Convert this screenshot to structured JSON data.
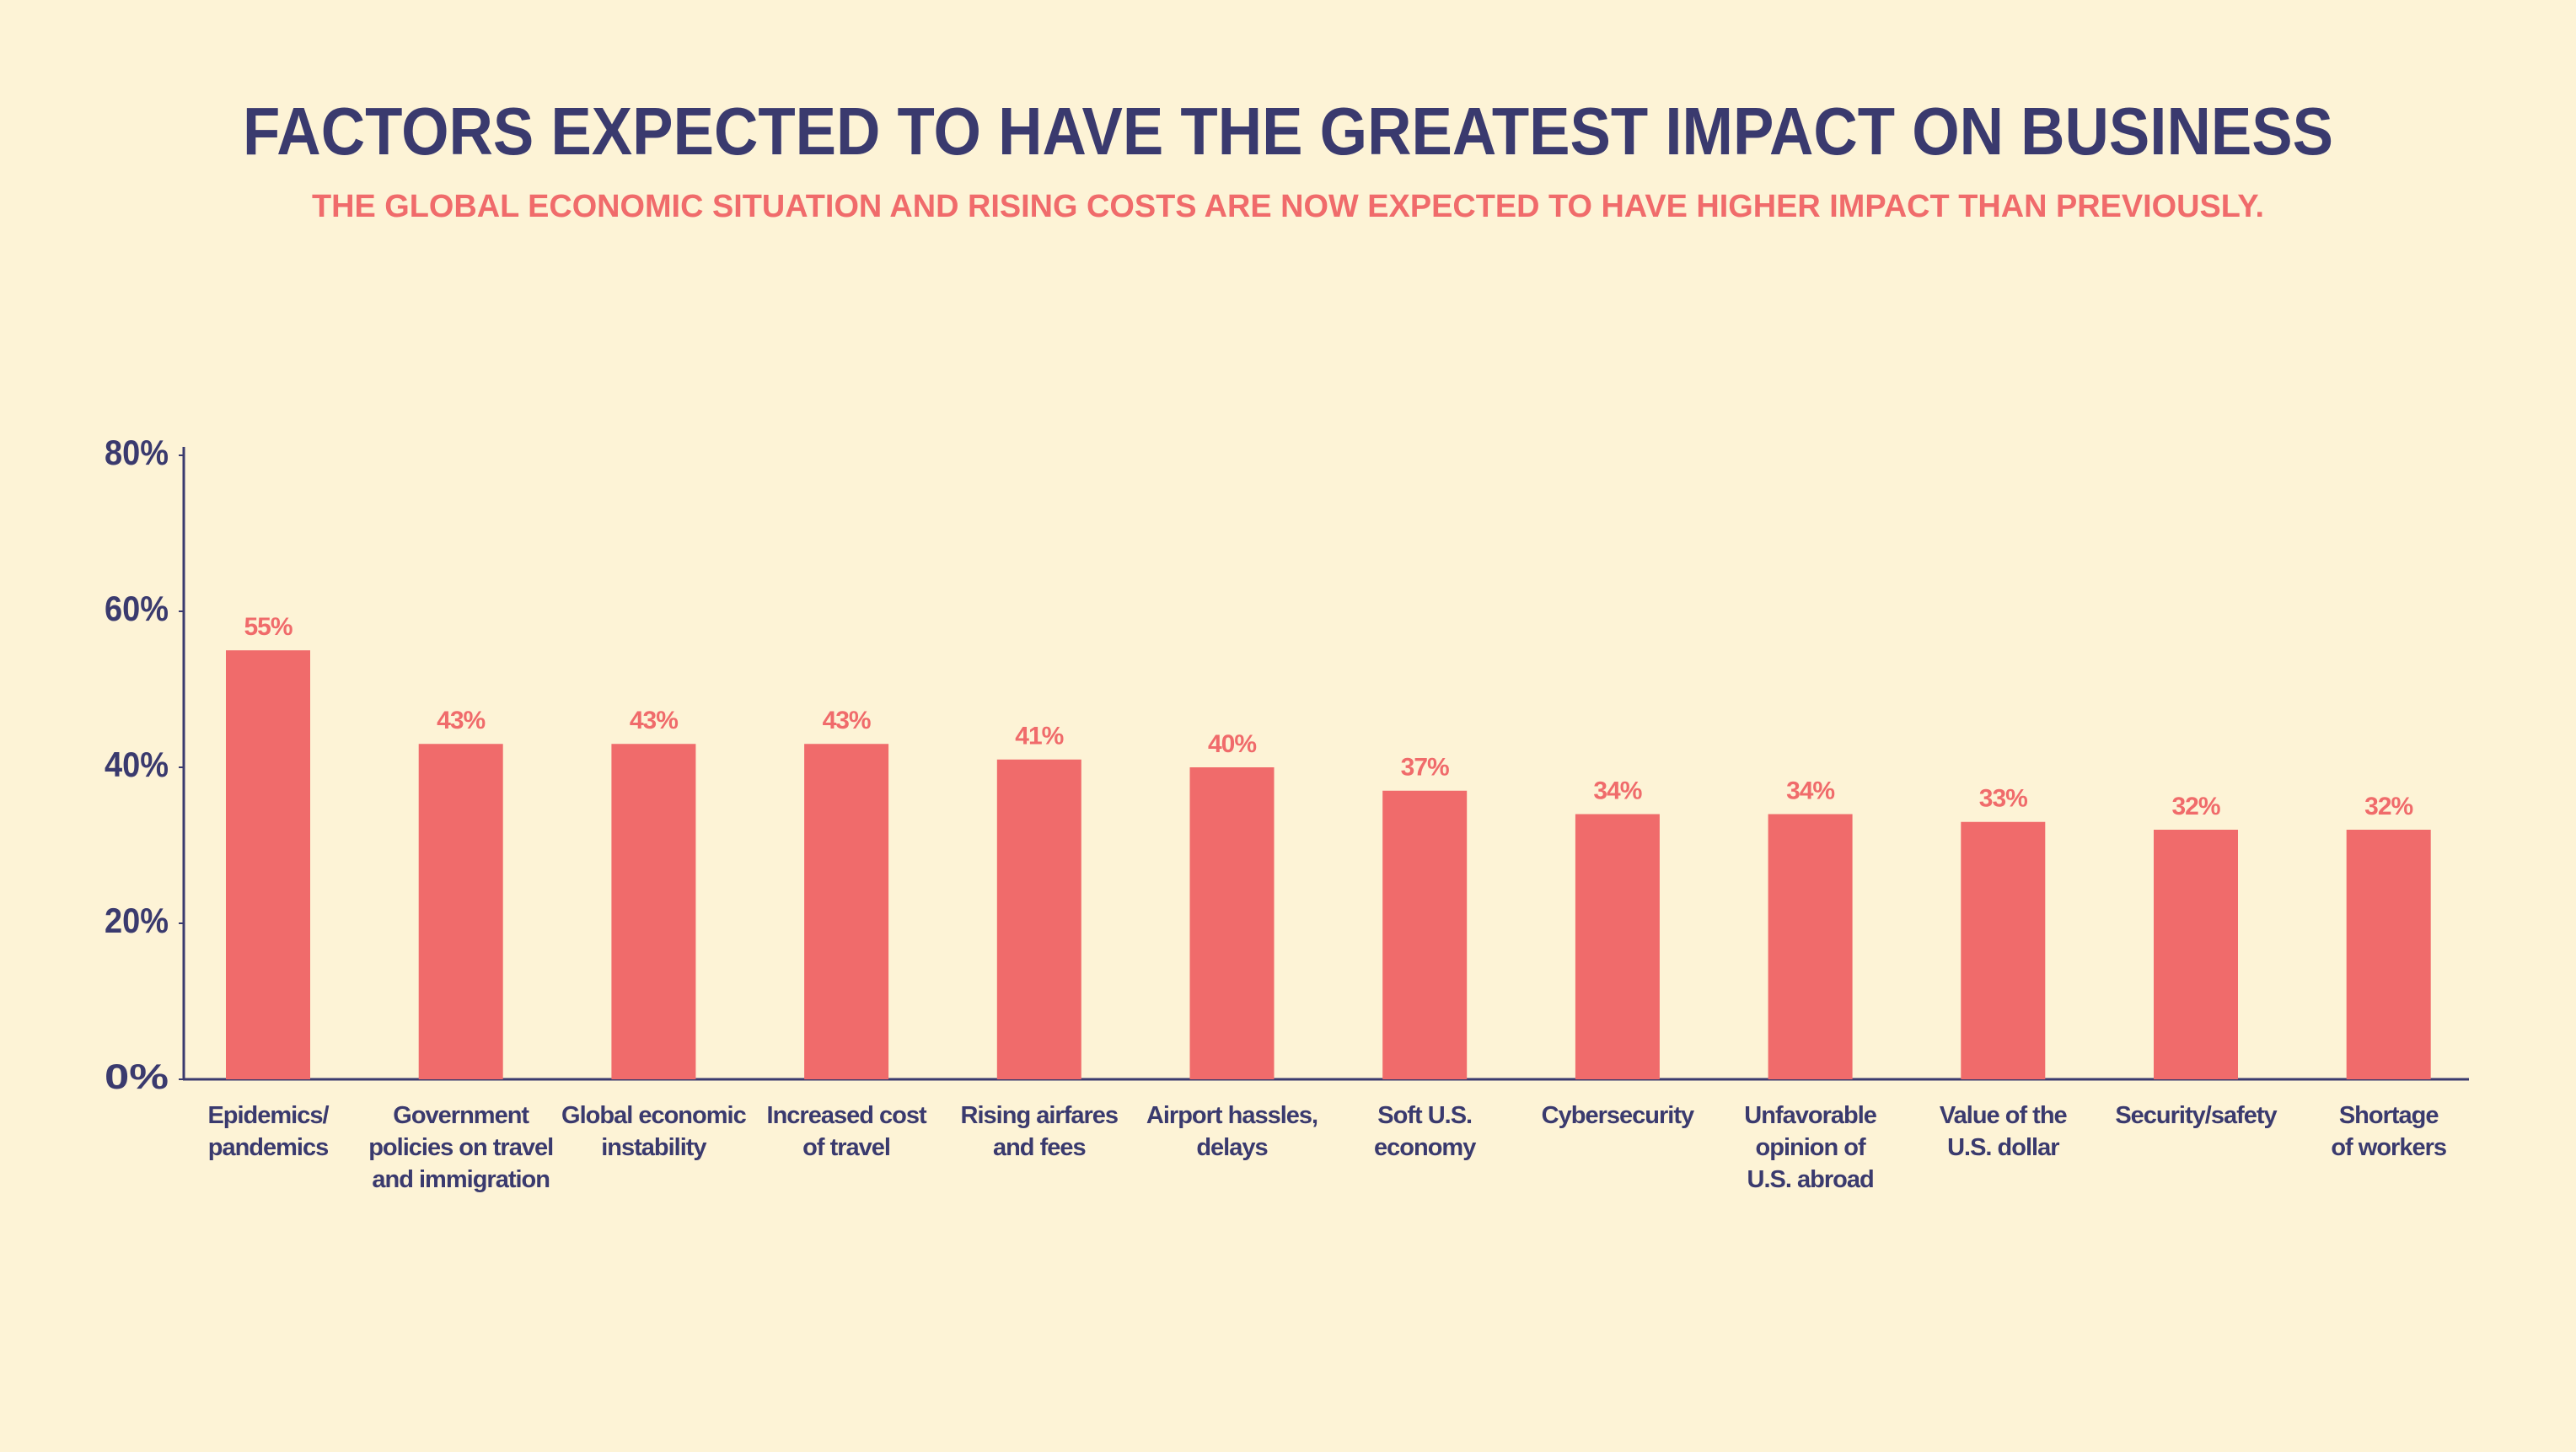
{
  "chart_data": {
    "type": "bar",
    "title": "FACTORS EXPECTED TO HAVE THE GREATEST IMPACT ON BUSINESS",
    "subtitle": "THE GLOBAL ECONOMIC SITUATION AND RISING COSTS ARE NOW EXPECTED TO HAVE HIGHER IMPACT THAN PREVIOUSLY.",
    "categories": [
      "Epidemics/\npandemics",
      "Government\npolicies on travel\nand immigration",
      "Global economic\ninstability",
      "Increased cost\nof travel",
      "Rising airfares\nand fees",
      "Airport hassles,\ndelays",
      "Soft U.S.\neconomy",
      "Cybersecurity",
      "Unfavorable\nopinion of\nU.S. abroad",
      "Value of the\nU.S. dollar",
      "Security/safety",
      "Shortage\nof workers"
    ],
    "values": [
      55,
      43,
      43,
      43,
      41,
      40,
      37,
      34,
      34,
      33,
      32,
      32
    ],
    "value_labels": [
      "55%",
      "43%",
      "43%",
      "43%",
      "41%",
      "40%",
      "37%",
      "34%",
      "34%",
      "33%",
      "32%",
      "32%"
    ],
    "color": "#f06b6b",
    "ylim": [
      0,
      80
    ],
    "yticks": [
      {
        "value": 0,
        "label": "0%"
      },
      {
        "value": 20,
        "label": "20%"
      },
      {
        "value": 40,
        "label": "40%"
      },
      {
        "value": 60,
        "label": "60%"
      },
      {
        "value": 80,
        "label": "80%"
      }
    ],
    "grid": false
  }
}
